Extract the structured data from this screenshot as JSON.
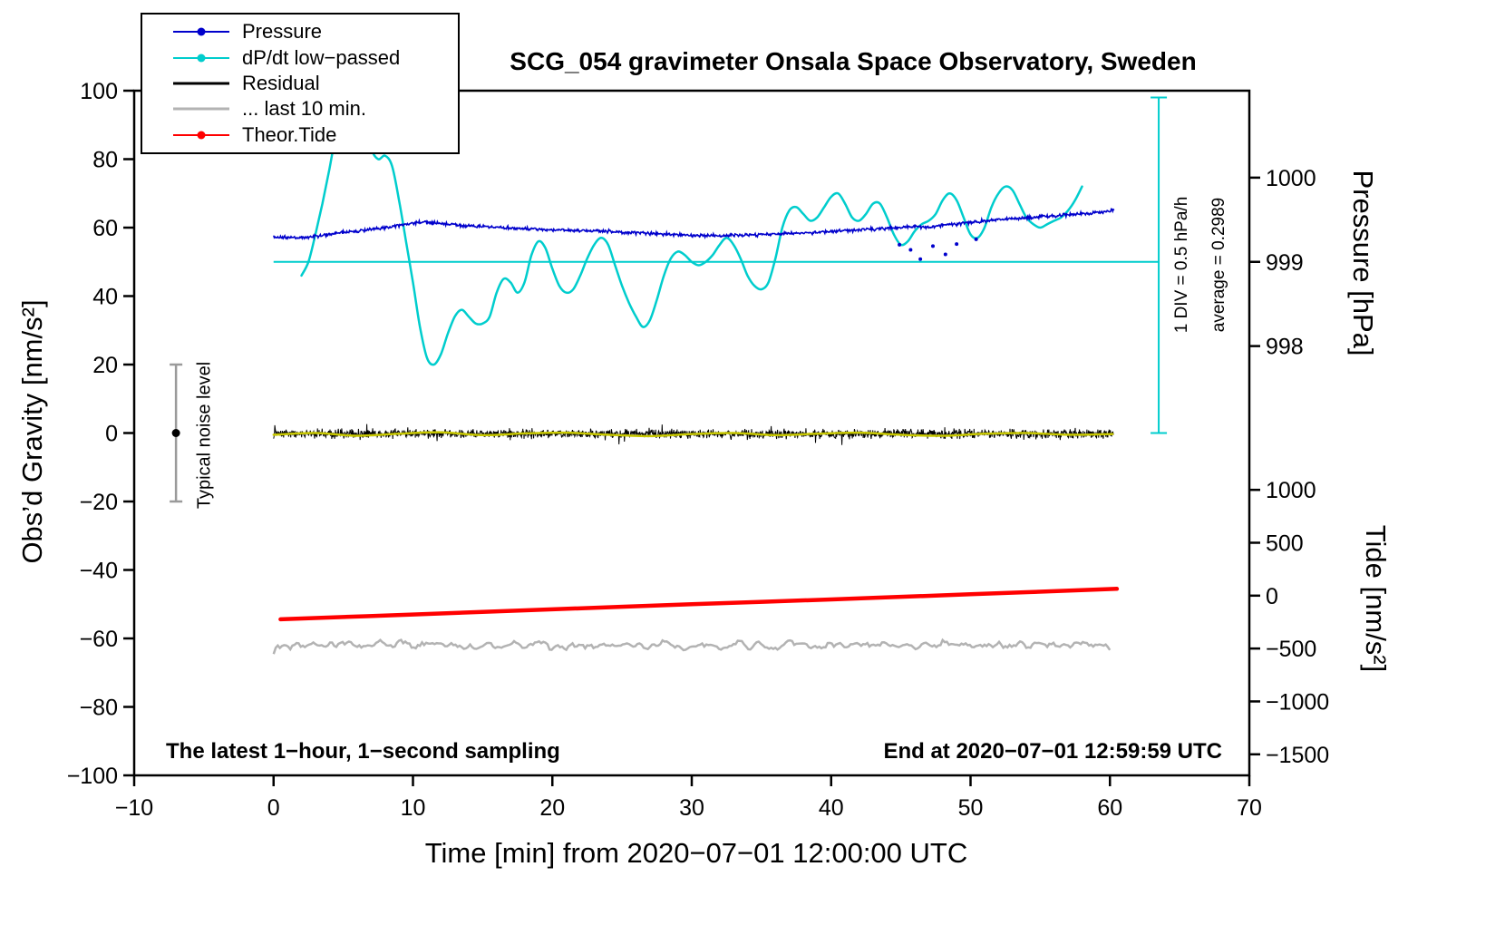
{
  "chart_data": {
    "type": "line",
    "title": "SCG_054 gravimeter Onsala Space Observatory, Sweden",
    "xlabel": "Time [min] from 2020−07−01 12:00:00 UTC",
    "x_axis": {
      "lim": [
        -10,
        70
      ],
      "ticks": [
        -10,
        0,
        10,
        20,
        30,
        40,
        50,
        60,
        70
      ]
    },
    "left_axis": {
      "label": "Obs’d Gravity [nm/s²]",
      "lim": [
        -100,
        100
      ],
      "ticks": [
        -100,
        -80,
        -60,
        -40,
        -20,
        0,
        20,
        40,
        60,
        80,
        100
      ]
    },
    "pressure_axis": {
      "label": "Pressure [hPa]",
      "ticks": [
        1000,
        999,
        998
      ],
      "gravity_at_999_hPa": 50,
      "gravity_units_per_hPa": 24.6
    },
    "tide_axis": {
      "label": "Tide [nm/s²]",
      "ticks": [
        1000,
        500,
        0,
        -500,
        -1000,
        -1500
      ],
      "gravity_at_zero_tide": -47.5,
      "gravity_units_per_tide_unit": 0.0309
    },
    "colors": {
      "pressure": "#0000cc",
      "dpdt": "#00cdcd",
      "residual": "#000000",
      "residual_lowpass": "#c8c800",
      "last10": "#b3b3b3",
      "tide": "#ff0000",
      "noise_bar": "#9a9a9a"
    },
    "legend": [
      {
        "label": "Pressure",
        "color": "#0000cc",
        "dot": true
      },
      {
        "label": "dP/dt low−passed",
        "color": "#00cdcd",
        "dot": true
      },
      {
        "label": "Residual",
        "color": "#000000",
        "dot": false
      },
      {
        "label": "... last 10 min.",
        "color": "#b3b3b3",
        "dot": false
      },
      {
        "label": "Theor.Tide",
        "color": "#ff0000",
        "dot": true
      }
    ],
    "annotations": {
      "noise_label": "Typical noise level",
      "div_label": "1 DIV = 0.5 hPa/h",
      "average_label": "average = 0.2989",
      "sampling_note": "The latest 1−hour, 1−second sampling",
      "end_note": "End at 2020−07−01 12:59:59 UTC"
    },
    "noise_bar": {
      "x": -7,
      "center": 0,
      "halfwidth": 20
    },
    "dpdt_reference": {
      "hline_gravity": 50,
      "hline_x_range": [
        0,
        63.5
      ],
      "scalebar_x": 63.5,
      "scalebar_gravity_range": [
        0,
        98
      ]
    },
    "series": [
      {
        "name": "dP/dt low-passed",
        "style": "smooth",
        "color": "#00cdcd",
        "width": 2.5,
        "keypoints": [
          [
            2,
            46
          ],
          [
            2.5,
            50
          ],
          [
            3,
            58
          ],
          [
            3.5,
            67
          ],
          [
            4,
            77
          ],
          [
            4.5,
            88
          ],
          [
            5,
            97
          ],
          [
            5.5,
            102
          ],
          [
            6,
            100
          ],
          [
            6.5,
            91
          ],
          [
            7,
            83
          ],
          [
            7.5,
            80
          ],
          [
            8,
            81
          ],
          [
            8.5,
            78
          ],
          [
            9,
            68
          ],
          [
            9.5,
            56
          ],
          [
            10,
            44
          ],
          [
            10.5,
            31
          ],
          [
            11,
            22
          ],
          [
            11.5,
            20
          ],
          [
            12,
            23
          ],
          [
            12.5,
            29
          ],
          [
            13,
            34
          ],
          [
            13.5,
            36
          ],
          [
            14,
            34
          ],
          [
            14.5,
            32
          ],
          [
            15,
            32
          ],
          [
            15.5,
            34
          ],
          [
            16,
            41
          ],
          [
            16.5,
            45
          ],
          [
            17,
            44
          ],
          [
            17.5,
            41
          ],
          [
            18,
            44
          ],
          [
            18.5,
            52
          ],
          [
            19,
            56
          ],
          [
            19.5,
            54
          ],
          [
            20,
            48
          ],
          [
            20.5,
            43
          ],
          [
            21,
            41
          ],
          [
            21.5,
            42
          ],
          [
            22,
            46
          ],
          [
            22.5,
            51
          ],
          [
            23,
            55
          ],
          [
            23.5,
            57
          ],
          [
            24,
            55
          ],
          [
            24.5,
            49
          ],
          [
            25,
            43
          ],
          [
            25.5,
            38
          ],
          [
            26,
            34
          ],
          [
            26.5,
            31
          ],
          [
            27,
            33
          ],
          [
            27.5,
            39
          ],
          [
            28,
            46
          ],
          [
            28.5,
            51
          ],
          [
            29,
            53
          ],
          [
            29.5,
            52
          ],
          [
            30,
            50
          ],
          [
            30.5,
            49
          ],
          [
            31,
            50
          ],
          [
            31.5,
            52
          ],
          [
            32,
            55
          ],
          [
            32.5,
            57
          ],
          [
            33,
            55
          ],
          [
            33.5,
            51
          ],
          [
            34,
            46
          ],
          [
            34.5,
            43
          ],
          [
            35,
            42
          ],
          [
            35.5,
            44
          ],
          [
            36,
            51
          ],
          [
            36.5,
            60
          ],
          [
            37,
            65
          ],
          [
            37.5,
            66
          ],
          [
            38,
            64
          ],
          [
            38.5,
            62
          ],
          [
            39,
            63
          ],
          [
            39.5,
            66
          ],
          [
            40,
            69
          ],
          [
            40.5,
            70
          ],
          [
            41,
            67
          ],
          [
            41.5,
            63
          ],
          [
            42,
            62
          ],
          [
            42.5,
            64
          ],
          [
            43,
            67
          ],
          [
            43.5,
            67
          ],
          [
            44,
            63
          ],
          [
            44.5,
            58
          ],
          [
            45,
            55
          ],
          [
            45.5,
            56
          ],
          [
            46,
            59
          ],
          [
            46.5,
            61
          ],
          [
            47,
            62
          ],
          [
            47.5,
            64
          ],
          [
            48,
            68
          ],
          [
            48.5,
            70
          ],
          [
            49,
            68
          ],
          [
            49.5,
            63
          ],
          [
            50,
            58
          ],
          [
            50.5,
            57
          ],
          [
            51,
            60
          ],
          [
            51.5,
            66
          ],
          [
            52,
            70
          ],
          [
            52.5,
            72
          ],
          [
            53,
            71
          ],
          [
            53.5,
            67
          ],
          [
            54,
            63
          ],
          [
            54.5,
            61
          ],
          [
            55,
            60
          ],
          [
            55.5,
            61
          ],
          [
            56,
            62
          ],
          [
            56.5,
            63
          ],
          [
            57,
            65
          ],
          [
            57.5,
            68
          ],
          [
            58,
            72
          ]
        ]
      },
      {
        "name": "Pressure",
        "style": "noisy-line",
        "color": "#0000cc",
        "width": 1.6,
        "step": 0.05,
        "noise": 0.7,
        "keypoints": [
          [
            0,
            57.2
          ],
          [
            2,
            57
          ],
          [
            4,
            58
          ],
          [
            6,
            59
          ],
          [
            8,
            60
          ],
          [
            10,
            61.3
          ],
          [
            11,
            61.6
          ],
          [
            12,
            61.1
          ],
          [
            14,
            60.5
          ],
          [
            16,
            60.1
          ],
          [
            18,
            59.7
          ],
          [
            20,
            59.4
          ],
          [
            22,
            59.1
          ],
          [
            24,
            58.9
          ],
          [
            26,
            58.5
          ],
          [
            28,
            58.1
          ],
          [
            30,
            57.7
          ],
          [
            32,
            57.6
          ],
          [
            34,
            57.8
          ],
          [
            36,
            58.1
          ],
          [
            38,
            58.4
          ],
          [
            40,
            58.9
          ],
          [
            42,
            59.3
          ],
          [
            44,
            59.8
          ],
          [
            46,
            60.4
          ],
          [
            47,
            60.1
          ],
          [
            48,
            60.8
          ],
          [
            50,
            61.5
          ],
          [
            52,
            62.3
          ],
          [
            54,
            62.9
          ],
          [
            56,
            63.5
          ],
          [
            58,
            64.1
          ],
          [
            60,
            64.8
          ],
          [
            60.3,
            65
          ]
        ]
      },
      {
        "name": "Pressure outliers",
        "style": "dots",
        "color": "#0000cc",
        "radius": 2,
        "points": [
          [
            44.9,
            55
          ],
          [
            45.7,
            53.5
          ],
          [
            46.4,
            50.8
          ],
          [
            47.3,
            54.6
          ],
          [
            48.2,
            52.2
          ],
          [
            49,
            55.2
          ],
          [
            50.4,
            56.6
          ]
        ]
      },
      {
        "name": "Residual",
        "style": "noisy-line",
        "color": "#000000",
        "width": 1,
        "baseline": -0.2,
        "noise": 2.0,
        "spike_prob": 0.012,
        "spike_mult": 2.6,
        "step": 0.03,
        "x_range": [
          0,
          60.3
        ]
      },
      {
        "name": "Residual low-passed",
        "style": "smooth",
        "color": "#c8c800",
        "width": 2.5,
        "keypoints": [
          [
            0,
            -0.5
          ],
          [
            3,
            0
          ],
          [
            6,
            -0.8
          ],
          [
            9,
            -0.2
          ],
          [
            12,
            0.2
          ],
          [
            15,
            -0.6
          ],
          [
            18,
            -0.1
          ],
          [
            21,
            0.1
          ],
          [
            24,
            -0.5
          ],
          [
            27,
            -0.9
          ],
          [
            30,
            -0.3
          ],
          [
            33,
            0
          ],
          [
            36,
            -0.6
          ],
          [
            39,
            -0.2
          ],
          [
            42,
            0.1
          ],
          [
            45,
            -0.5
          ],
          [
            48,
            -0.8
          ],
          [
            51,
            -0.2
          ],
          [
            54,
            0
          ],
          [
            57,
            -0.5
          ],
          [
            60.2,
            -0.3
          ]
        ]
      },
      {
        "name": "Residual last 10 min",
        "style": "noisy-line",
        "color": "#b3b3b3",
        "width": 2.5,
        "baseline": -62,
        "noise": 3.2,
        "step": 0.15,
        "smooth": 1,
        "x_range": [
          0,
          60
        ]
      },
      {
        "name": "Theor.Tide",
        "style": "smooth",
        "color": "#ff0000",
        "width": 4.5,
        "keypoints": [
          [
            0.5,
            -54.4
          ],
          [
            10,
            -53
          ],
          [
            20,
            -51.5
          ],
          [
            30,
            -50
          ],
          [
            40,
            -48.6
          ],
          [
            50,
            -47.1
          ],
          [
            60.5,
            -45.5
          ]
        ]
      }
    ]
  }
}
